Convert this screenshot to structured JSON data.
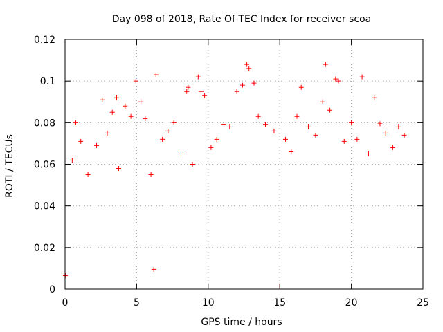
{
  "chart_data": {
    "type": "scatter",
    "title": "Day 098 of 2018, Rate Of TEC Index for receiver scoa",
    "xlabel": "GPS time / hours",
    "ylabel": "ROTI / TECUs",
    "xlim": [
      0,
      25
    ],
    "ylim": [
      0,
      0.12
    ],
    "xticks": [
      0,
      5,
      10,
      15,
      20,
      25
    ],
    "xtick_labels": [
      "0",
      "5",
      "10",
      "15",
      "20",
      "25"
    ],
    "yticks": [
      0,
      0.02,
      0.04,
      0.06,
      0.08,
      0.1,
      0.12
    ],
    "ytick_labels": [
      "0",
      "0.02",
      "0.04",
      "0.06",
      "0.08",
      "0.1",
      "0.12"
    ],
    "grid": true,
    "marker": "+",
    "color": "#ff0000",
    "series": [
      {
        "name": "ROTI",
        "x": [
          0.02,
          0.5,
          0.75,
          1.1,
          1.6,
          2.2,
          2.6,
          2.95,
          3.3,
          3.6,
          3.75,
          4.2,
          4.6,
          4.95,
          5.3,
          5.6,
          6.0,
          6.2,
          6.35,
          6.8,
          7.2,
          7.6,
          8.1,
          8.5,
          8.6,
          8.9,
          9.3,
          9.5,
          9.75,
          10.2,
          10.6,
          11.1,
          11.5,
          12.0,
          12.4,
          12.7,
          12.85,
          13.2,
          13.5,
          14.0,
          14.6,
          15.0,
          15.4,
          15.8,
          16.2,
          16.5,
          17.0,
          17.5,
          18.0,
          18.2,
          18.5,
          18.9,
          19.1,
          19.5,
          20.0,
          20.4,
          20.75,
          21.2,
          21.6,
          22.0,
          22.4,
          22.9,
          23.3,
          23.7
        ],
        "y": [
          0.0065,
          0.062,
          0.08,
          0.071,
          0.055,
          0.069,
          0.091,
          0.075,
          0.085,
          0.092,
          0.058,
          0.088,
          0.083,
          0.1,
          0.09,
          0.082,
          0.055,
          0.0095,
          0.103,
          0.072,
          0.076,
          0.08,
          0.065,
          0.095,
          0.097,
          0.06,
          0.102,
          0.095,
          0.093,
          0.068,
          0.072,
          0.079,
          0.078,
          0.095,
          0.098,
          0.108,
          0.106,
          0.099,
          0.083,
          0.079,
          0.076,
          0.0015,
          0.072,
          0.066,
          0.083,
          0.097,
          0.078,
          0.074,
          0.09,
          0.108,
          0.086,
          0.101,
          0.1,
          0.071,
          0.08,
          0.072,
          0.102,
          0.065,
          0.092,
          0.0795,
          0.075,
          0.068,
          0.078,
          0.074
        ]
      }
    ]
  }
}
